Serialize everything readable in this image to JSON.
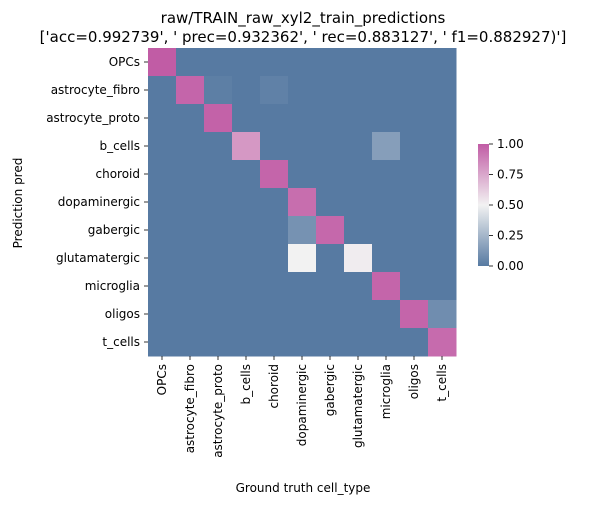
{
  "chart_data": {
    "type": "heatmap",
    "title_line1": "raw/TRAIN_raw_xyl2_train_predictions",
    "title_line2": "['acc=0.992739', '  prec=0.932362', ' rec=0.883127', ' f1=0.882927)']",
    "xlabel": "Ground truth cell_type",
    "ylabel": "Prediction pred",
    "x_categories": [
      "OPCs",
      "astrocyte_fibro",
      "astrocyte_proto",
      "b_cells",
      "choroid",
      "dopaminergic",
      "gabergic",
      "glutamatergic",
      "microglia",
      "oligos",
      "t_cells"
    ],
    "y_categories": [
      "OPCs",
      "astrocyte_fibro",
      "astrocyte_proto",
      "b_cells",
      "choroid",
      "dopaminergic",
      "gabergic",
      "glutamatergic",
      "microglia",
      "oligos",
      "t_cells"
    ],
    "values": [
      [
        1.0,
        0.0,
        0.0,
        0.0,
        0.0,
        0.0,
        0.0,
        0.0,
        0.0,
        0.0,
        0.0
      ],
      [
        0.0,
        0.97,
        0.02,
        0.0,
        0.03,
        0.0,
        0.0,
        0.0,
        0.0,
        0.0,
        0.0
      ],
      [
        0.0,
        0.0,
        0.98,
        0.0,
        0.0,
        0.0,
        0.0,
        0.0,
        0.0,
        0.0,
        0.0
      ],
      [
        0.0,
        0.0,
        0.0,
        0.8,
        0.0,
        0.0,
        0.0,
        0.0,
        0.15,
        0.0,
        0.0
      ],
      [
        0.0,
        0.0,
        0.0,
        0.0,
        0.97,
        0.0,
        0.0,
        0.0,
        0.0,
        0.0,
        0.0
      ],
      [
        0.0,
        0.0,
        0.0,
        0.0,
        0.0,
        0.94,
        0.0,
        0.0,
        0.0,
        0.0,
        0.0
      ],
      [
        0.0,
        0.0,
        0.0,
        0.0,
        0.0,
        0.1,
        0.96,
        0.0,
        0.0,
        0.0,
        0.0
      ],
      [
        0.0,
        0.0,
        0.0,
        0.0,
        0.0,
        0.5,
        0.0,
        0.52,
        0.0,
        0.0,
        0.0
      ],
      [
        0.0,
        0.0,
        0.0,
        0.0,
        0.0,
        0.0,
        0.0,
        0.0,
        0.97,
        0.0,
        0.0
      ],
      [
        0.0,
        0.0,
        0.0,
        0.0,
        0.0,
        0.0,
        0.0,
        0.0,
        0.0,
        0.97,
        0.08
      ],
      [
        0.0,
        0.0,
        0.0,
        0.0,
        0.0,
        0.0,
        0.0,
        0.0,
        0.0,
        0.0,
        0.95
      ]
    ],
    "colorbar": {
      "range": [
        0.0,
        1.0
      ],
      "ticks": [
        "0.00",
        "0.25",
        "0.50",
        "0.75",
        "1.00"
      ],
      "tick_values": [
        0.0,
        0.25,
        0.5,
        0.75,
        1.0
      ],
      "colors": {
        "low": "#577aa2",
        "mid": "#f2f2f2",
        "high": "#c15ca5"
      }
    },
    "grid": false
  }
}
